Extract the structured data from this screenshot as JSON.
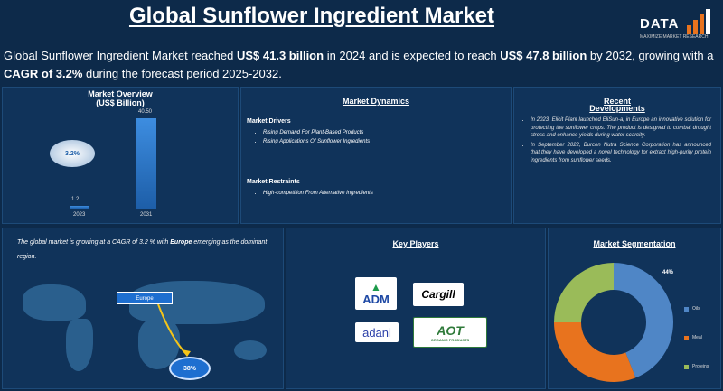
{
  "header": {
    "title": "Global Sunflower Ingredient Market",
    "logo_text": "DATA",
    "logo_sub": "MAXIMIZE MARKET RESEARCH"
  },
  "summary": {
    "p1": "Global Sunflower Ingredient Market reached ",
    "v1": "US$ 41.3 billion",
    "p2": " in 2024 and is expected to reach ",
    "v2": "US$ 47.8 billion",
    "p3": " by 2032, growing with a ",
    "v3": "CAGR of 3.2%",
    "p4": " during the forecast period 2025-2032."
  },
  "overview": {
    "title": "Market Overview",
    "subtitle": "(US$ Billion)",
    "cagr": "3.2%",
    "chart_data": {
      "type": "bar",
      "categories": [
        "2023",
        "2031"
      ],
      "values": [
        1.2,
        40.5
      ],
      "value_labels": [
        "1.2",
        "40.50"
      ]
    }
  },
  "dynamics": {
    "title": "Market Dynamics",
    "drivers_title": "Market Drivers",
    "drivers": [
      "Rising Demand For Plant-Based Products",
      "Rising Applications Of Sunflower Ingredients"
    ],
    "restraints_title": "Market Restraints",
    "restraints": [
      "High-competition From Alternative Ingredients"
    ]
  },
  "recent": {
    "title": "Recent",
    "title2": "Developments",
    "items": [
      "In 2023, Elicit Plant launched EliSun-a, in Europe an innovative solution for protecting the sunflower crops. The product is designed to combat drought stress and enhance yields during water scarcity.",
      "In September 2022, Burcon Nutra Science Corporation has announced that they have developed a novel technology for extract high-purity protein ingredients from sunflower seeds."
    ]
  },
  "map": {
    "text_a": "The global market is growing at a CAGR of 3.2 % with ",
    "text_b": "Europe",
    "text_c": " emerging as the dominant region.",
    "region_label": "Europe",
    "share": "38%"
  },
  "players": {
    "title": "Key Players",
    "logos": [
      "ADM",
      "Cargill",
      "adani",
      "AOT"
    ],
    "aot_sub": "ORGANIC PRODUCTS"
  },
  "segmentation": {
    "title": "Market Segmentation",
    "pct": "44%",
    "chart_data": {
      "type": "pie",
      "categories": [
        "Oils",
        "Meal",
        "Proteins"
      ],
      "values": [
        44,
        31,
        25
      ],
      "colors": [
        "#4f86c6",
        "#e8731e",
        "#9abb59"
      ]
    }
  }
}
